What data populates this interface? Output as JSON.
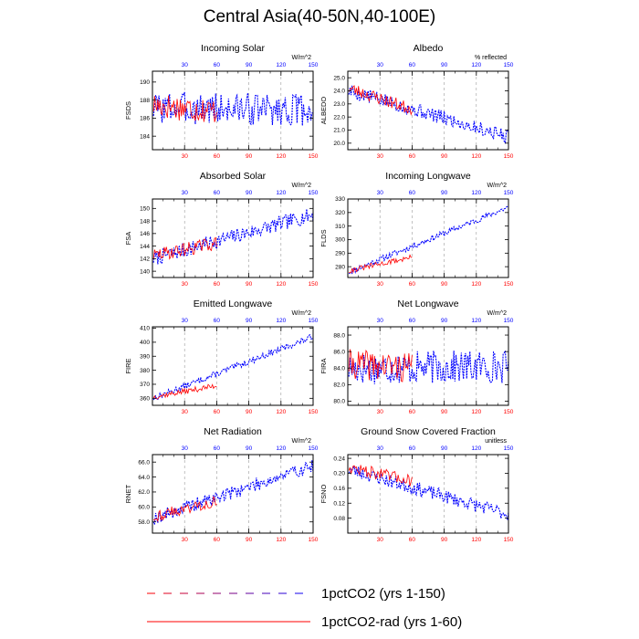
{
  "figure": {
    "title": "Central Asia(40-50N,40-100E)",
    "legend": [
      {
        "label": "1pctCO2 (yrs 1-150)",
        "color": "#0000ff",
        "style": "dashed"
      },
      {
        "label": "1pctCO2-rad (yrs 1-60)",
        "color": "#ff0000",
        "style": "solid"
      }
    ]
  },
  "chart_data": [
    {
      "type": "line",
      "title": "Incoming Solar",
      "ylabel": "FSDS",
      "units": "W/m^2",
      "xlim": [
        0,
        150
      ],
      "ylim": [
        182.5,
        191.2
      ],
      "xticks": [
        30,
        60,
        90,
        120,
        150
      ],
      "yticks": [
        184,
        186,
        188,
        190
      ],
      "ytick_format": "int",
      "grid": "vertical dashed at x ticks",
      "series": [
        {
          "name": "1pctCO2 (yrs 1-150)",
          "color": "#0000ff",
          "x_range": [
            1,
            150
          ],
          "trend": [
            187.2,
            186.9
          ],
          "amplitude": 1.8,
          "seed": 3
        },
        {
          "name": "1pctCO2-rad (yrs 1-60)",
          "color": "#ff0000",
          "x_range": [
            1,
            60
          ],
          "trend": [
            187.5,
            186.8
          ],
          "amplitude": 1.5,
          "seed": 17
        }
      ]
    },
    {
      "type": "line",
      "title": "Albedo",
      "ylabel": "ALBEDO",
      "units": "% reflected",
      "xlim": [
        0,
        150
      ],
      "ylim": [
        19.5,
        25.5
      ],
      "xticks": [
        30,
        60,
        90,
        120,
        150
      ],
      "yticks": [
        20.0,
        21.0,
        22.0,
        23.0,
        24.0,
        25.0
      ],
      "ytick_format": "1dp",
      "grid": "vertical dashed at x ticks",
      "series": [
        {
          "name": "1pctCO2 (yrs 1-150)",
          "color": "#0000ff",
          "x_range": [
            1,
            150
          ],
          "trend": [
            24.0,
            20.5
          ],
          "amplitude": 0.55,
          "seed": 5
        },
        {
          "name": "1pctCO2-rad (yrs 1-60)",
          "color": "#ff0000",
          "x_range": [
            1,
            60
          ],
          "trend": [
            24.2,
            22.6
          ],
          "amplitude": 0.5,
          "seed": 23
        }
      ]
    },
    {
      "type": "line",
      "title": "Absorbed Solar",
      "ylabel": "FSA",
      "units": "W/m^2",
      "xlim": [
        0,
        150
      ],
      "ylim": [
        139,
        151.5
      ],
      "xticks": [
        30,
        60,
        90,
        120,
        150
      ],
      "yticks": [
        140,
        142,
        144,
        146,
        148,
        150
      ],
      "ytick_format": "int",
      "grid": "vertical dashed at x ticks",
      "series": [
        {
          "name": "1pctCO2 (yrs 1-150)",
          "color": "#0000ff",
          "x_range": [
            1,
            150
          ],
          "trend": [
            142.0,
            149.0
          ],
          "amplitude": 1.2,
          "seed": 7
        },
        {
          "name": "1pctCO2-rad (yrs 1-60)",
          "color": "#ff0000",
          "x_range": [
            1,
            60
          ],
          "trend": [
            142.5,
            144.5
          ],
          "amplitude": 1.1,
          "seed": 29
        }
      ]
    },
    {
      "type": "line",
      "title": "Incoming Longwave",
      "ylabel": "FLDS",
      "units": "W/m^2",
      "xlim": [
        0,
        150
      ],
      "ylim": [
        272,
        330
      ],
      "xticks": [
        30,
        60,
        90,
        120,
        150
      ],
      "yticks": [
        280,
        290,
        300,
        310,
        320,
        330
      ],
      "ytick_format": "int",
      "grid": "vertical dashed at x ticks",
      "series": [
        {
          "name": "1pctCO2 (yrs 1-150)",
          "color": "#0000ff",
          "x_range": [
            1,
            150
          ],
          "trend": [
            276.0,
            324.0
          ],
          "amplitude": 2.2,
          "seed": 11
        },
        {
          "name": "1pctCO2-rad (yrs 1-60)",
          "color": "#ff0000",
          "x_range": [
            1,
            60
          ],
          "trend": [
            277.0,
            287.0
          ],
          "amplitude": 2.0,
          "seed": 31
        }
      ]
    },
    {
      "type": "line",
      "title": "Emitted Longwave",
      "ylabel": "FIRE",
      "units": "W/m^2",
      "xlim": [
        0,
        150
      ],
      "ylim": [
        355,
        411
      ],
      "xticks": [
        30,
        60,
        90,
        120,
        150
      ],
      "yticks": [
        360,
        370,
        380,
        390,
        400,
        410
      ],
      "ytick_format": "int",
      "grid": "vertical dashed at x ticks",
      "series": [
        {
          "name": "1pctCO2 (yrs 1-150)",
          "color": "#0000ff",
          "x_range": [
            1,
            150
          ],
          "trend": [
            360.0,
            404.0
          ],
          "amplitude": 2.2,
          "seed": 13
        },
        {
          "name": "1pctCO2-rad (yrs 1-60)",
          "color": "#ff0000",
          "x_range": [
            1,
            60
          ],
          "trend": [
            361.0,
            369.0
          ],
          "amplitude": 2.0,
          "seed": 37
        }
      ]
    },
    {
      "type": "line",
      "title": "Net Longwave",
      "ylabel": "FIRA",
      "units": "W/m^2",
      "xlim": [
        0,
        150
      ],
      "ylim": [
        79.5,
        89
      ],
      "xticks": [
        30,
        60,
        90,
        120,
        150
      ],
      "yticks": [
        80.0,
        82.0,
        84.0,
        86.0,
        88.0
      ],
      "ytick_format": "1dp",
      "grid": "vertical dashed at x ticks",
      "series": [
        {
          "name": "1pctCO2 (yrs 1-150)",
          "color": "#0000ff",
          "x_range": [
            1,
            150
          ],
          "trend": [
            84.0,
            84.2
          ],
          "amplitude": 2.0,
          "seed": 17
        },
        {
          "name": "1pctCO2-rad (yrs 1-60)",
          "color": "#ff0000",
          "x_range": [
            1,
            60
          ],
          "trend": [
            84.5,
            84.0
          ],
          "amplitude": 1.8,
          "seed": 41
        }
      ]
    },
    {
      "type": "line",
      "title": "Net Radiation",
      "ylabel": "RNET",
      "units": "W/m^2",
      "xlim": [
        0,
        150
      ],
      "ylim": [
        56.5,
        67
      ],
      "xticks": [
        30,
        60,
        90,
        120,
        150
      ],
      "yticks": [
        58.0,
        60.0,
        62.0,
        64.0,
        66.0
      ],
      "ytick_format": "1dp",
      "grid": "vertical dashed at x ticks",
      "series": [
        {
          "name": "1pctCO2 (yrs 1-150)",
          "color": "#0000ff",
          "x_range": [
            1,
            150
          ],
          "trend": [
            58.5,
            65.5
          ],
          "amplitude": 0.9,
          "seed": 19
        },
        {
          "name": "1pctCO2-rad (yrs 1-60)",
          "color": "#ff0000",
          "x_range": [
            1,
            60
          ],
          "trend": [
            58.7,
            60.8
          ],
          "amplitude": 0.8,
          "seed": 43
        }
      ]
    },
    {
      "type": "line",
      "title": "Ground Snow Covered Fraction",
      "ylabel": "FSNO",
      "units": "unitless",
      "xlim": [
        0,
        150
      ],
      "ylim": [
        0.04,
        0.25
      ],
      "xticks": [
        30,
        60,
        90,
        120,
        150
      ],
      "yticks": [
        0.08,
        0.12,
        0.16,
        0.2,
        0.24
      ],
      "ytick_format": "2dp",
      "grid": "vertical dashed at x ticks",
      "series": [
        {
          "name": "1pctCO2 (yrs 1-150)",
          "color": "#0000ff",
          "x_range": [
            1,
            150
          ],
          "trend": [
            0.21,
            0.09
          ],
          "amplitude": 0.018,
          "seed": 23
        },
        {
          "name": "1pctCO2-rad (yrs 1-60)",
          "color": "#ff0000",
          "x_range": [
            1,
            60
          ],
          "trend": [
            0.215,
            0.18
          ],
          "amplitude": 0.016,
          "seed": 47
        }
      ]
    }
  ]
}
